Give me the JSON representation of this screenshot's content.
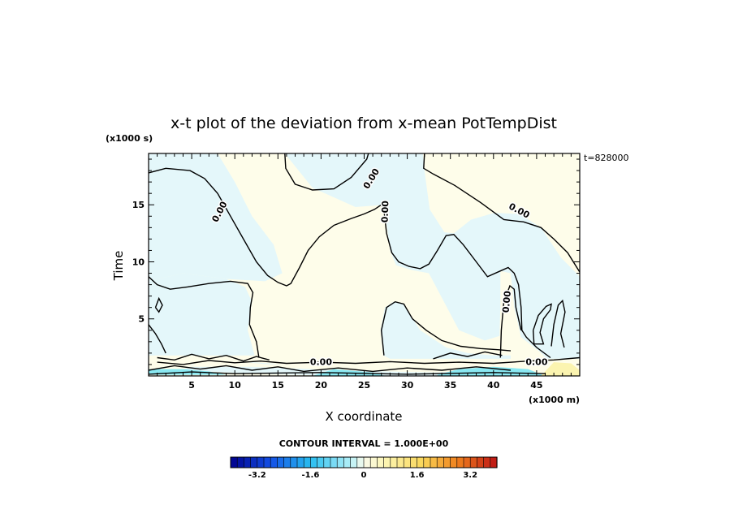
{
  "chart_data": {
    "type": "heatmap",
    "title": "x-t plot of the deviation from x-mean PotTempDist",
    "xlabel": "X coordinate",
    "ylabel": "Time",
    "x_unit": "(x1000 m)",
    "y_unit": "(x1000 s)",
    "time_stamp": "t=828000",
    "xlim": [
      0,
      50
    ],
    "ylim": [
      0,
      19.5
    ],
    "x_ticks": [
      5,
      10,
      15,
      20,
      25,
      30,
      35,
      40,
      45
    ],
    "y_ticks": [
      5,
      10,
      15
    ],
    "contour_label": "0.00",
    "contour_interval_text": "CONTOUR INTERVAL = 1.000E+00",
    "colorbar_range": [
      -4,
      4
    ],
    "colorbar_ticks": [
      "-3.2",
      "-1.6",
      "0",
      "1.6",
      "3.2"
    ],
    "colorbar_tick_values": [
      -3.2,
      -1.6,
      0,
      1.6,
      3.2
    ],
    "colors": {
      "negative_small": "#e4f7fa",
      "positive_small": "#fefdea",
      "cyan": "#8ae8f2",
      "yellow": "#fbf4b0"
    },
    "regions": {
      "negative": [
        [
          [
            0,
            19.5
          ],
          [
            8,
            19.5
          ],
          [
            10,
            17
          ],
          [
            12,
            14
          ],
          [
            14.5,
            11.5
          ],
          [
            15.5,
            9
          ],
          [
            13.5,
            8.3
          ],
          [
            9,
            8.5
          ],
          [
            4,
            9
          ],
          [
            0,
            8.3
          ]
        ],
        [
          [
            0,
            8.3
          ],
          [
            4,
            9
          ],
          [
            9,
            8.5
          ],
          [
            11.2,
            7.8
          ],
          [
            12,
            6.5
          ],
          [
            11.5,
            4
          ],
          [
            12.3,
            1.8
          ],
          [
            0,
            1.8
          ]
        ],
        [
          [
            15.8,
            19.5
          ],
          [
            19,
            16.5
          ],
          [
            24,
            14.8
          ],
          [
            27.3,
            15
          ],
          [
            28,
            11
          ],
          [
            28.7,
            9.7
          ],
          [
            30.4,
            9.3
          ],
          [
            32.5,
            9
          ],
          [
            34.4,
            6.3
          ],
          [
            36,
            4
          ],
          [
            39,
            3.1
          ],
          [
            40.7,
            3.5
          ],
          [
            40.8,
            6.2
          ],
          [
            40.8,
            9.2
          ],
          [
            42,
            9
          ],
          [
            42.4,
            6
          ],
          [
            43.2,
            3.4
          ],
          [
            45.4,
            2.1
          ],
          [
            46.2,
            1.5
          ],
          [
            50,
            1.5
          ],
          [
            50,
            8.7
          ],
          [
            47.8,
            10.4
          ],
          [
            45.5,
            13
          ],
          [
            43,
            14.2
          ],
          [
            40.1,
            14.3
          ],
          [
            37.4,
            13.7
          ],
          [
            35.4,
            12.5
          ],
          [
            34.3,
            12.6
          ],
          [
            32.6,
            14.6
          ],
          [
            32,
            18
          ],
          [
            31.8,
            19.5
          ]
        ],
        [
          [
            27.2,
            1.8
          ],
          [
            26.9,
            4
          ],
          [
            27.4,
            6
          ],
          [
            28.4,
            6.5
          ],
          [
            29.5,
            6.3
          ],
          [
            31.5,
            4
          ],
          [
            34.5,
            2.5
          ],
          [
            37,
            2
          ],
          [
            40,
            1.8
          ],
          [
            42,
            1.8
          ],
          [
            42,
            1.5
          ],
          [
            28,
            1.5
          ]
        ],
        [
          [
            5,
            1
          ],
          [
            12,
            1.2
          ],
          [
            18,
            0.9
          ],
          [
            24,
            0.6
          ],
          [
            33,
            0.6
          ],
          [
            40,
            0.8
          ],
          [
            42,
            0.4
          ],
          [
            38,
            0
          ],
          [
            22,
            0
          ],
          [
            12,
            0.2
          ],
          [
            4,
            0.5
          ]
        ]
      ],
      "positive": [
        [
          [
            50,
            0
          ],
          [
            44,
            0
          ],
          [
            44.5,
            0.6
          ],
          [
            46.5,
            1
          ],
          [
            50,
            1
          ]
        ],
        [
          [
            0,
            0.3
          ],
          [
            3,
            0.6
          ],
          [
            6,
            1.1
          ],
          [
            10,
            1.3
          ],
          [
            14,
            1
          ],
          [
            20,
            1.1
          ],
          [
            24,
            1
          ],
          [
            30,
            1.05
          ],
          [
            36,
            1.1
          ],
          [
            40,
            1
          ],
          [
            45,
            1.2
          ],
          [
            47,
            1.3
          ],
          [
            50,
            1.5
          ],
          [
            50,
            1
          ],
          [
            47,
            0.7
          ],
          [
            44,
            0.5
          ],
          [
            40,
            0.5
          ],
          [
            33,
            0.3
          ],
          [
            22,
            0.5
          ],
          [
            12,
            0.8
          ],
          [
            5,
            0.8
          ]
        ]
      ],
      "cyan": [
        [
          [
            0,
            0.6
          ],
          [
            4,
            0.6
          ],
          [
            7,
            0.4
          ],
          [
            9,
            0.1
          ],
          [
            0,
            0.1
          ]
        ],
        [
          [
            19,
            0
          ],
          [
            21.5,
            0.6
          ],
          [
            26,
            0.3
          ],
          [
            27.5,
            0
          ]
        ],
        [
          [
            33.5,
            0.1
          ],
          [
            36,
            0.6
          ],
          [
            40,
            0.8
          ],
          [
            44,
            0.6
          ],
          [
            46,
            0
          ],
          [
            33.5,
            0
          ]
        ]
      ],
      "yellow": [
        [
          [
            45.5,
            0
          ],
          [
            47,
            1.2
          ],
          [
            49,
            1.1
          ],
          [
            50,
            0.5
          ],
          [
            50,
            0
          ]
        ]
      ]
    },
    "contours": [
      [
        [
          0,
          17.8
        ],
        [
          2,
          18.2
        ],
        [
          4.8,
          18
        ],
        [
          6.5,
          17.3
        ],
        [
          8,
          16
        ],
        [
          9.5,
          14
        ],
        [
          11,
          12
        ],
        [
          12.5,
          10
        ],
        [
          13.8,
          8.8
        ],
        [
          15,
          8.2
        ],
        [
          16,
          7.9
        ],
        [
          16.5,
          8.1
        ],
        [
          17.5,
          9.5
        ],
        [
          18.5,
          11
        ],
        [
          19.8,
          12.2
        ],
        [
          21.5,
          13.2
        ],
        [
          23.5,
          13.8
        ],
        [
          25,
          14.2
        ],
        [
          26.2,
          14.6
        ],
        [
          27,
          15
        ],
        [
          27.3,
          14.5
        ],
        [
          27.6,
          12.5
        ],
        [
          28.2,
          10.8
        ],
        [
          29,
          10
        ],
        [
          30.2,
          9.6
        ],
        [
          31.5,
          9.4
        ],
        [
          32.5,
          9.8
        ],
        [
          33.5,
          11
        ],
        [
          34.5,
          12.3
        ],
        [
          35.4,
          12.4
        ],
        [
          36.5,
          11.5
        ],
        [
          38,
          10
        ],
        [
          39.3,
          8.7
        ],
        [
          40.8,
          9.2
        ],
        [
          41.7,
          9.5
        ],
        [
          42.4,
          9
        ],
        [
          42.9,
          8
        ],
        [
          43.2,
          6
        ],
        [
          43.3,
          4
        ],
        [
          43.8,
          3.4
        ],
        [
          45,
          2.5
        ],
        [
          46.6,
          1.6
        ]
      ],
      [
        [
          15.8,
          19.5
        ],
        [
          15.9,
          18.2
        ],
        [
          17,
          16.8
        ],
        [
          19,
          16.3
        ],
        [
          21.5,
          16.4
        ],
        [
          23.5,
          17.4
        ],
        [
          25.3,
          19
        ],
        [
          25.5,
          19.5
        ]
      ],
      [
        [
          32,
          19.5
        ],
        [
          31.9,
          18.2
        ],
        [
          33,
          17.7
        ],
        [
          35.5,
          16.7
        ],
        [
          38.5,
          15.2
        ],
        [
          41.2,
          13.7
        ],
        [
          43.5,
          13.5
        ],
        [
          45.5,
          13
        ],
        [
          47,
          12
        ],
        [
          48.6,
          10.8
        ],
        [
          50,
          9.1
        ]
      ],
      [
        [
          0,
          8.7
        ],
        [
          1,
          8
        ],
        [
          2.5,
          7.6
        ],
        [
          4.5,
          7.8
        ],
        [
          7,
          8.1
        ],
        [
          9.5,
          8.3
        ],
        [
          11.5,
          8.1
        ],
        [
          12.1,
          7.3
        ],
        [
          11.8,
          6
        ],
        [
          11.7,
          4.5
        ],
        [
          12.5,
          3
        ],
        [
          12.8,
          1.6
        ]
      ],
      [
        [
          0.8,
          6
        ],
        [
          1.2,
          6.8
        ],
        [
          1.6,
          6.2
        ],
        [
          1.2,
          5.6
        ],
        [
          0.8,
          6
        ]
      ],
      [
        [
          0,
          4.5
        ],
        [
          0.8,
          3.7
        ],
        [
          1.5,
          2.8
        ],
        [
          2,
          2
        ]
      ],
      [
        [
          27.3,
          1.8
        ],
        [
          27,
          4
        ],
        [
          27.6,
          6
        ],
        [
          28.6,
          6.5
        ],
        [
          29.6,
          6.3
        ],
        [
          30.6,
          5
        ],
        [
          32.2,
          4
        ],
        [
          34,
          3.1
        ],
        [
          36.2,
          2.6
        ],
        [
          38.5,
          2.4
        ],
        [
          40.5,
          2.3
        ],
        [
          42,
          2.2
        ]
      ],
      [
        [
          40.8,
          1.6
        ],
        [
          40.9,
          4
        ],
        [
          41.2,
          6.5
        ],
        [
          41.9,
          7.9
        ],
        [
          42.4,
          7.6
        ],
        [
          42.6,
          6
        ],
        [
          43.2,
          4
        ]
      ],
      [
        [
          44.6,
          4
        ],
        [
          45.2,
          5.3
        ],
        [
          46.1,
          6.1
        ],
        [
          46.7,
          6.3
        ],
        [
          46.6,
          5.8
        ],
        [
          45.8,
          5
        ],
        [
          45.4,
          3.8
        ],
        [
          45.8,
          2.8
        ],
        [
          44.7,
          2.8
        ],
        [
          44.6,
          4
        ]
      ],
      [
        [
          46.7,
          2.6
        ],
        [
          47,
          4.5
        ],
        [
          47.5,
          6.2
        ],
        [
          48,
          6.6
        ],
        [
          48.3,
          5.6
        ],
        [
          47.8,
          3.7
        ],
        [
          48.2,
          2.5
        ]
      ],
      [
        [
          1,
          1.6
        ],
        [
          3,
          1.4
        ],
        [
          5,
          1.9
        ],
        [
          7,
          1.5
        ],
        [
          9,
          1.8
        ],
        [
          11,
          1.3
        ],
        [
          12.5,
          1.7
        ],
        [
          14,
          1.4
        ]
      ],
      [
        [
          1,
          1.2
        ],
        [
          4,
          1
        ],
        [
          7,
          1.35
        ],
        [
          10,
          1.15
        ],
        [
          13,
          1.3
        ],
        [
          16,
          1.1
        ],
        [
          20,
          1.2
        ],
        [
          24,
          1.1
        ],
        [
          28,
          1.25
        ],
        [
          32,
          1.1
        ],
        [
          36,
          1.2
        ],
        [
          40,
          1.1
        ],
        [
          44,
          1.3
        ],
        [
          47,
          1.4
        ],
        [
          50,
          1.6
        ]
      ],
      [
        [
          0,
          0.5
        ],
        [
          3,
          0.9
        ],
        [
          6,
          0.6
        ],
        [
          9,
          0.9
        ],
        [
          12,
          0.5
        ],
        [
          15,
          0.8
        ],
        [
          18,
          0.4
        ],
        [
          22,
          0.7
        ],
        [
          26,
          0.4
        ],
        [
          30,
          0.7
        ],
        [
          34,
          0.5
        ],
        [
          38,
          0.8
        ],
        [
          42,
          0.5
        ]
      ],
      [
        [
          0,
          0.15
        ],
        [
          5,
          0.35
        ],
        [
          10,
          0.2
        ],
        [
          20,
          0.3
        ],
        [
          30,
          0.15
        ],
        [
          40,
          0.3
        ],
        [
          46,
          0.2
        ]
      ],
      [
        [
          33,
          1.5
        ],
        [
          35,
          2
        ],
        [
          37,
          1.7
        ],
        [
          39,
          2.1
        ],
        [
          41,
          1.8
        ]
      ]
    ],
    "contour_label_positions": [
      [
        8.2,
        14.4,
        -62
      ],
      [
        25.8,
        17.3,
        -58
      ],
      [
        27.4,
        14.4,
        -88
      ],
      [
        43,
        14.5,
        28
      ],
      [
        41.5,
        6.5,
        -85
      ],
      [
        20,
        1.25,
        0
      ],
      [
        45,
        1.25,
        0
      ]
    ]
  }
}
